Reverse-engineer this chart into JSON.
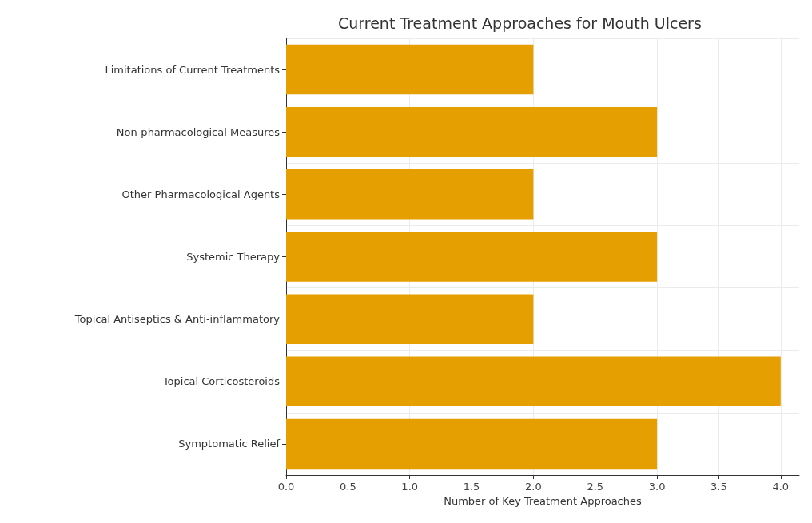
{
  "chart_data": {
    "type": "bar",
    "orientation": "horizontal",
    "title": "Current Treatment Approaches for Mouth Ulcers",
    "xlabel": "Number of Key Treatment Approaches",
    "categories": [
      "Limitations of Current Treatments",
      "Non-pharmacological Measures",
      "Other Pharmacological Agents",
      "Systemic Therapy",
      "Topical Antiseptics & Anti-inflammatory",
      "Topical Corticosteroids",
      "Symptomatic Relief"
    ],
    "values": [
      2,
      3,
      2,
      3,
      2,
      4,
      3
    ],
    "color": "#e69f00",
    "xlim": [
      0,
      4.15
    ],
    "xticks": [
      {
        "value": 0,
        "label": "0.0"
      },
      {
        "value": 0.5,
        "label": "0.5"
      },
      {
        "value": 1,
        "label": "1.0"
      },
      {
        "value": 1.5,
        "label": "1.5"
      },
      {
        "value": 2,
        "label": "2.0"
      },
      {
        "value": 2.5,
        "label": "2.5"
      },
      {
        "value": 3,
        "label": "3.0"
      },
      {
        "value": 3.5,
        "label": "3.5"
      },
      {
        "value": 4,
        "label": "4.0"
      }
    ],
    "grid": true
  }
}
